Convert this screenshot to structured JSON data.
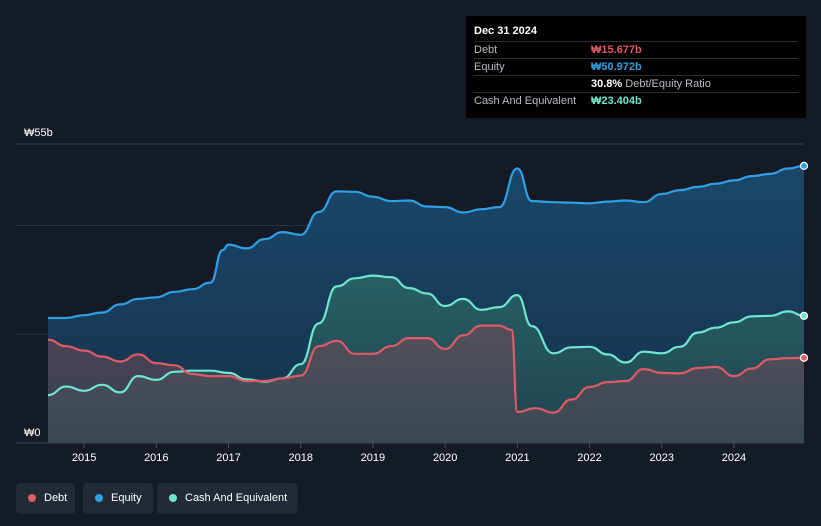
{
  "colors": {
    "debt": "#e05a66",
    "equity": "#2f9fe6",
    "cash": "#6ee6cf",
    "grid": "#2c333d",
    "axis_text": "#ffffff"
  },
  "tooltip": {
    "date": "Dec 31 2024",
    "debt_label": "Debt",
    "debt_value": "₩15.677b",
    "equity_label": "Equity",
    "equity_value": "₩50.972b",
    "ratio_value": "30.8%",
    "ratio_label": "Debt/Equity Ratio",
    "cash_label": "Cash And Equivalent",
    "cash_value": "₩23.404b"
  },
  "legend": [
    {
      "label": "Debt",
      "color": "#e05a66"
    },
    {
      "label": "Equity",
      "color": "#2f9fe6"
    },
    {
      "label": "Cash And Equivalent",
      "color": "#6ee6cf"
    }
  ],
  "chart_data": {
    "type": "area",
    "y_unit_labels": {
      "top": "₩55b",
      "bottom": "₩0"
    },
    "ylim": [
      0,
      55
    ],
    "xlim": [
      2014.5,
      2025.0
    ],
    "x_ticks": [
      "2015",
      "2016",
      "2017",
      "2018",
      "2019",
      "2020",
      "2021",
      "2022",
      "2023",
      "2024"
    ],
    "series": [
      {
        "name": "Equity",
        "points": [
          [
            2014.5,
            23.0
          ],
          [
            2014.75,
            23.0
          ],
          [
            2015.0,
            23.5
          ],
          [
            2015.25,
            24.0
          ],
          [
            2015.5,
            25.5
          ],
          [
            2015.75,
            26.5
          ],
          [
            2016.0,
            26.8
          ],
          [
            2016.25,
            27.8
          ],
          [
            2016.5,
            28.3
          ],
          [
            2016.75,
            29.5
          ],
          [
            2016.92,
            35.5
          ],
          [
            2017.0,
            36.5
          ],
          [
            2017.25,
            35.8
          ],
          [
            2017.5,
            37.5
          ],
          [
            2017.75,
            38.8
          ],
          [
            2018.0,
            38.3
          ],
          [
            2018.25,
            42.5
          ],
          [
            2018.5,
            46.3
          ],
          [
            2018.75,
            46.2
          ],
          [
            2019.0,
            45.3
          ],
          [
            2019.25,
            44.5
          ],
          [
            2019.5,
            44.6
          ],
          [
            2019.75,
            43.5
          ],
          [
            2020.0,
            43.4
          ],
          [
            2020.25,
            42.4
          ],
          [
            2020.5,
            43.0
          ],
          [
            2020.75,
            43.4
          ],
          [
            2021.0,
            50.5
          ],
          [
            2021.2,
            44.5
          ],
          [
            2021.5,
            44.3
          ],
          [
            2021.75,
            44.2
          ],
          [
            2022.0,
            44.1
          ],
          [
            2022.25,
            44.4
          ],
          [
            2022.5,
            44.6
          ],
          [
            2022.75,
            44.3
          ],
          [
            2023.0,
            45.8
          ],
          [
            2023.25,
            46.5
          ],
          [
            2023.5,
            47.1
          ],
          [
            2023.75,
            47.7
          ],
          [
            2024.0,
            48.3
          ],
          [
            2024.25,
            49.1
          ],
          [
            2024.5,
            49.5
          ],
          [
            2024.75,
            50.5
          ],
          [
            2024.97,
            50.97
          ]
        ]
      },
      {
        "name": "Cash And Equivalent",
        "points": [
          [
            2014.5,
            8.8
          ],
          [
            2014.75,
            10.4
          ],
          [
            2015.0,
            9.6
          ],
          [
            2015.25,
            10.7
          ],
          [
            2015.5,
            9.3
          ],
          [
            2015.75,
            12.3
          ],
          [
            2016.0,
            11.6
          ],
          [
            2016.25,
            13.1
          ],
          [
            2016.5,
            13.3
          ],
          [
            2016.75,
            13.3
          ],
          [
            2017.0,
            12.9
          ],
          [
            2017.25,
            11.7
          ],
          [
            2017.5,
            11.3
          ],
          [
            2017.75,
            11.9
          ],
          [
            2018.0,
            14.5
          ],
          [
            2018.25,
            22.0
          ],
          [
            2018.5,
            28.8
          ],
          [
            2018.75,
            30.3
          ],
          [
            2019.0,
            30.8
          ],
          [
            2019.25,
            30.5
          ],
          [
            2019.5,
            28.5
          ],
          [
            2019.75,
            27.5
          ],
          [
            2020.0,
            25.2
          ],
          [
            2020.25,
            26.5
          ],
          [
            2020.5,
            24.5
          ],
          [
            2020.75,
            25.0
          ],
          [
            2021.0,
            27.2
          ],
          [
            2021.2,
            21.5
          ],
          [
            2021.5,
            16.5
          ],
          [
            2021.75,
            17.6
          ],
          [
            2022.0,
            17.7
          ],
          [
            2022.25,
            16.3
          ],
          [
            2022.5,
            14.8
          ],
          [
            2022.75,
            16.8
          ],
          [
            2023.0,
            16.5
          ],
          [
            2023.25,
            17.7
          ],
          [
            2023.5,
            20.3
          ],
          [
            2023.75,
            21.2
          ],
          [
            2024.0,
            22.2
          ],
          [
            2024.25,
            23.3
          ],
          [
            2024.5,
            23.4
          ],
          [
            2024.75,
            24.2
          ],
          [
            2024.97,
            23.4
          ]
        ]
      },
      {
        "name": "Debt",
        "points": [
          [
            2014.5,
            19.0
          ],
          [
            2014.75,
            17.8
          ],
          [
            2015.0,
            17.0
          ],
          [
            2015.25,
            15.9
          ],
          [
            2015.5,
            15.0
          ],
          [
            2015.75,
            16.3
          ],
          [
            2016.0,
            14.7
          ],
          [
            2016.25,
            14.3
          ],
          [
            2016.5,
            12.7
          ],
          [
            2016.75,
            12.3
          ],
          [
            2017.0,
            12.3
          ],
          [
            2017.25,
            11.4
          ],
          [
            2017.5,
            11.4
          ],
          [
            2017.75,
            11.9
          ],
          [
            2018.0,
            12.4
          ],
          [
            2018.25,
            17.8
          ],
          [
            2018.5,
            18.8
          ],
          [
            2018.75,
            16.4
          ],
          [
            2019.0,
            16.4
          ],
          [
            2019.25,
            17.8
          ],
          [
            2019.5,
            19.3
          ],
          [
            2019.75,
            19.3
          ],
          [
            2020.0,
            17.3
          ],
          [
            2020.25,
            19.8
          ],
          [
            2020.5,
            21.6
          ],
          [
            2020.75,
            21.6
          ],
          [
            2020.92,
            20.8
          ],
          [
            2021.0,
            5.7
          ],
          [
            2021.25,
            6.4
          ],
          [
            2021.5,
            5.6
          ],
          [
            2021.75,
            8.0
          ],
          [
            2022.0,
            10.3
          ],
          [
            2022.25,
            11.2
          ],
          [
            2022.5,
            11.4
          ],
          [
            2022.75,
            13.6
          ],
          [
            2023.0,
            12.9
          ],
          [
            2023.25,
            12.8
          ],
          [
            2023.5,
            13.8
          ],
          [
            2023.75,
            14.0
          ],
          [
            2024.0,
            12.3
          ],
          [
            2024.25,
            13.7
          ],
          [
            2024.5,
            15.4
          ],
          [
            2024.75,
            15.6
          ],
          [
            2024.97,
            15.68
          ]
        ]
      }
    ]
  }
}
